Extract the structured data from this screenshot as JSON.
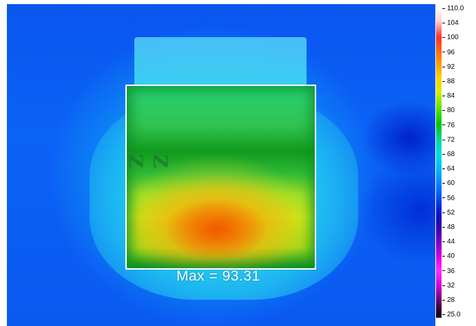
{
  "roi": {
    "max_label": "Max = 93.31"
  },
  "chip_marking": "Z Z",
  "scale": {
    "ticks": [
      "110.0",
      "104",
      "100",
      "96",
      "92",
      "88",
      "84",
      "80",
      "76",
      "72",
      "68",
      "64",
      "60",
      "56",
      "52",
      "48",
      "44",
      "40",
      "36",
      "32",
      "28",
      "25.0"
    ]
  }
}
